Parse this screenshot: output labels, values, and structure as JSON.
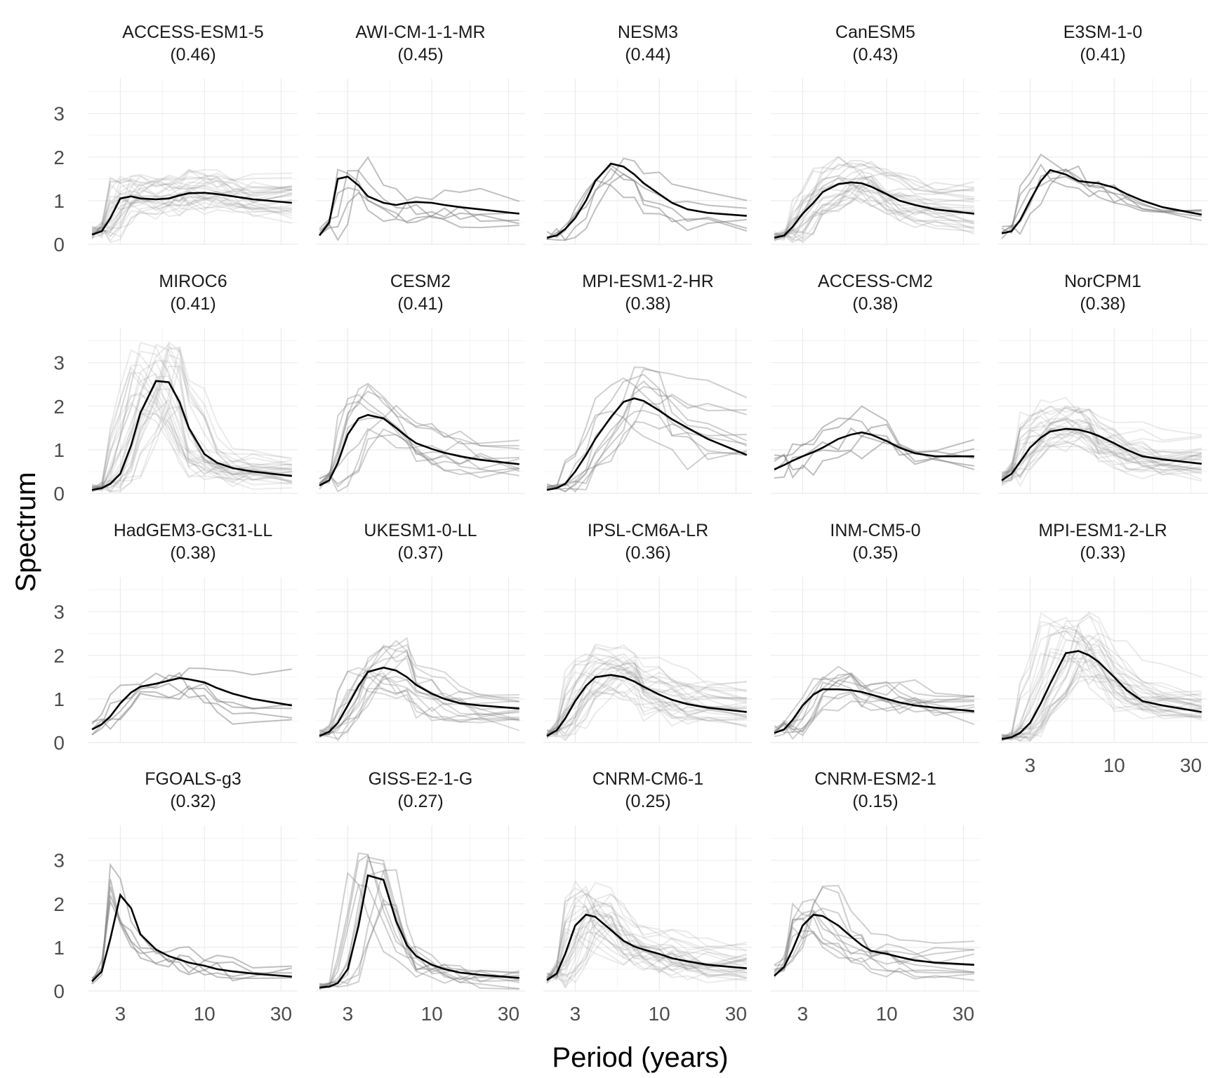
{
  "figure": {
    "xlabel": "Period (years)",
    "ylabel": "Spectrum",
    "x_scale": "log",
    "x_ticks": [
      3,
      10,
      30
    ],
    "y_ticks": [
      0,
      1,
      2,
      3
    ],
    "xlim": [
      1.9,
      38
    ],
    "ylim": [
      0,
      3.8
    ],
    "colors": {
      "mean_line": "#000000",
      "member_lines": "#808080",
      "grid": "#ebebeb"
    }
  },
  "chart_data": {
    "type": "line",
    "x": [
      2,
      2.3,
      2.6,
      3,
      3.5,
      4,
      5,
      6,
      7,
      8,
      10,
      12,
      15,
      20,
      35
    ],
    "panels": [
      {
        "title": "ACCESS-ESM1-5",
        "score": "(0.46)",
        "members": 30,
        "member_opacity": 0.16,
        "mean": [
          0.22,
          0.3,
          0.6,
          1.05,
          1.1,
          1.05,
          1.03,
          1.05,
          1.12,
          1.17,
          1.18,
          1.15,
          1.1,
          1.03,
          0.95
        ]
      },
      {
        "title": "AWI-CM-1-1-MR",
        "score": "(0.45)",
        "members": 5,
        "member_opacity": 0.5,
        "mean": [
          0.2,
          0.5,
          1.5,
          1.55,
          1.35,
          1.1,
          0.95,
          0.9,
          0.95,
          0.97,
          0.95,
          0.9,
          0.85,
          0.8,
          0.7
        ]
      },
      {
        "title": "NESM3",
        "score": "(0.44)",
        "members": 5,
        "member_opacity": 0.5,
        "mean": [
          0.15,
          0.2,
          0.35,
          0.6,
          1.0,
          1.45,
          1.85,
          1.78,
          1.6,
          1.4,
          1.15,
          0.95,
          0.8,
          0.72,
          0.65
        ]
      },
      {
        "title": "CanESM5",
        "score": "(0.43)",
        "members": 25,
        "member_opacity": 0.2,
        "mean": [
          0.15,
          0.2,
          0.4,
          0.7,
          0.95,
          1.2,
          1.38,
          1.42,
          1.4,
          1.32,
          1.15,
          1.0,
          0.9,
          0.8,
          0.7
        ]
      },
      {
        "title": "E3SM-1-0",
        "score": "(0.41)",
        "members": 5,
        "member_opacity": 0.5,
        "mean": [
          0.25,
          0.3,
          0.55,
          1.0,
          1.45,
          1.7,
          1.6,
          1.45,
          1.42,
          1.4,
          1.3,
          1.15,
          1.0,
          0.85,
          0.68
        ]
      },
      {
        "title": "MIROC6",
        "score": "(0.41)",
        "members": 30,
        "member_opacity": 0.16,
        "mean": [
          0.08,
          0.12,
          0.22,
          0.45,
          1.1,
          1.85,
          2.58,
          2.55,
          2.1,
          1.5,
          0.9,
          0.7,
          0.58,
          0.5,
          0.4
        ]
      },
      {
        "title": "CESM2",
        "score": "(0.41)",
        "members": 10,
        "member_opacity": 0.38,
        "mean": [
          0.18,
          0.3,
          0.7,
          1.35,
          1.72,
          1.8,
          1.72,
          1.5,
          1.3,
          1.15,
          1.02,
          0.93,
          0.85,
          0.77,
          0.67
        ]
      },
      {
        "title": "MPI-ESM1-2-HR",
        "score": "(0.38)",
        "members": 10,
        "member_opacity": 0.38,
        "mean": [
          0.08,
          0.12,
          0.22,
          0.5,
          0.88,
          1.25,
          1.75,
          2.1,
          2.18,
          2.12,
          1.9,
          1.7,
          1.5,
          1.25,
          0.88
        ]
      },
      {
        "title": "ACCESS-CM2",
        "score": "(0.38)",
        "members": 5,
        "member_opacity": 0.5,
        "mean": [
          0.55,
          0.65,
          0.75,
          0.85,
          0.95,
          1.05,
          1.25,
          1.35,
          1.4,
          1.35,
          1.2,
          1.05,
          0.92,
          0.85,
          0.85
        ]
      },
      {
        "title": "NorCPM1",
        "score": "(0.38)",
        "members": 30,
        "member_opacity": 0.16,
        "mean": [
          0.3,
          0.45,
          0.72,
          1.05,
          1.28,
          1.42,
          1.48,
          1.46,
          1.4,
          1.32,
          1.15,
          1.0,
          0.85,
          0.78,
          0.68
        ]
      },
      {
        "title": "HadGEM3-GC31-LL",
        "score": "(0.38)",
        "members": 5,
        "member_opacity": 0.5,
        "mean": [
          0.3,
          0.42,
          0.6,
          0.9,
          1.15,
          1.28,
          1.35,
          1.42,
          1.48,
          1.45,
          1.38,
          1.25,
          1.12,
          1.0,
          0.85
        ]
      },
      {
        "title": "UKESM1-0-LL",
        "score": "(0.37)",
        "members": 15,
        "member_opacity": 0.3,
        "mean": [
          0.15,
          0.25,
          0.45,
          0.85,
          1.3,
          1.62,
          1.72,
          1.65,
          1.5,
          1.32,
          1.12,
          1.0,
          0.9,
          0.85,
          0.78
        ]
      },
      {
        "title": "IPSL-CM6A-LR",
        "score": "(0.36)",
        "members": 30,
        "member_opacity": 0.16,
        "mean": [
          0.15,
          0.28,
          0.55,
          0.95,
          1.3,
          1.5,
          1.55,
          1.5,
          1.4,
          1.28,
          1.1,
          0.98,
          0.88,
          0.8,
          0.7
        ]
      },
      {
        "title": "INM-CM5-0",
        "score": "(0.35)",
        "members": 10,
        "member_opacity": 0.38,
        "mean": [
          0.22,
          0.3,
          0.52,
          0.85,
          1.1,
          1.22,
          1.22,
          1.2,
          1.16,
          1.1,
          1.0,
          0.92,
          0.85,
          0.8,
          0.72
        ]
      },
      {
        "title": "MPI-ESM1-2-LR",
        "score": "(0.33)",
        "members": 30,
        "member_opacity": 0.16,
        "mean": [
          0.08,
          0.12,
          0.22,
          0.45,
          0.9,
          1.35,
          2.05,
          2.1,
          2.0,
          1.85,
          1.5,
          1.2,
          0.95,
          0.85,
          0.7
        ]
      },
      {
        "title": "FGOALS-g3",
        "score": "(0.32)",
        "members": 5,
        "member_opacity": 0.5,
        "mean": [
          0.22,
          0.45,
          1.2,
          2.2,
          1.9,
          1.3,
          0.95,
          0.8,
          0.72,
          0.65,
          0.58,
          0.5,
          0.45,
          0.4,
          0.33
        ]
      },
      {
        "title": "GISS-E2-1-G",
        "score": "(0.27)",
        "members": 10,
        "member_opacity": 0.38,
        "mean": [
          0.08,
          0.1,
          0.18,
          0.5,
          1.5,
          2.65,
          2.55,
          1.6,
          1.05,
          0.8,
          0.6,
          0.5,
          0.42,
          0.37,
          0.3
        ]
      },
      {
        "title": "CNRM-CM6-1",
        "score": "(0.25)",
        "members": 30,
        "member_opacity": 0.16,
        "mean": [
          0.25,
          0.4,
          0.85,
          1.5,
          1.75,
          1.7,
          1.4,
          1.15,
          1.02,
          0.95,
          0.85,
          0.75,
          0.68,
          0.6,
          0.52
        ]
      },
      {
        "title": "CNRM-ESM2-1",
        "score": "(0.15)",
        "members": 10,
        "member_opacity": 0.38,
        "mean": [
          0.35,
          0.55,
          0.95,
          1.5,
          1.75,
          1.72,
          1.5,
          1.25,
          1.05,
          0.92,
          0.85,
          0.78,
          0.7,
          0.65,
          0.6
        ]
      }
    ]
  }
}
